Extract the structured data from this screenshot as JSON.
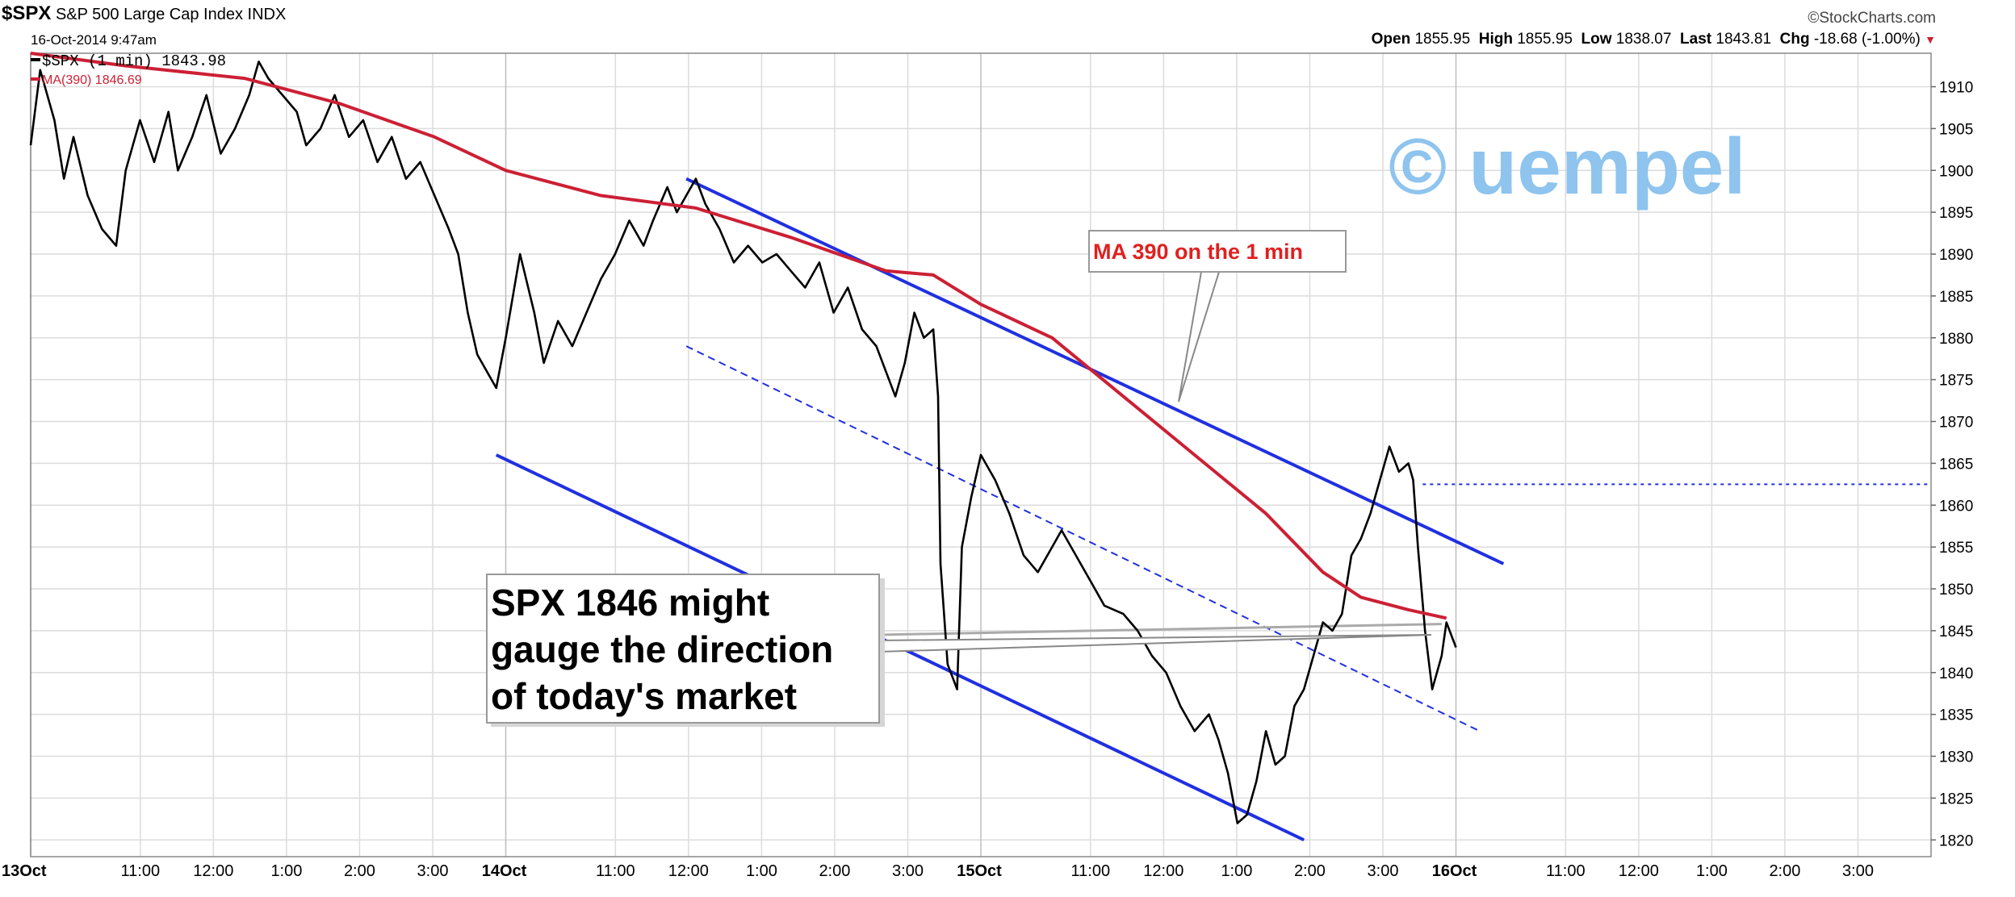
{
  "header": {
    "symbol": "$SPX",
    "name": "S&P 500 Large Cap Index",
    "exchange": "INDX",
    "datetime": "16-Oct-2014 9:47am",
    "source": "©StockCharts.com",
    "open_label": "Open",
    "open": "1855.95",
    "high_label": "High",
    "high": "1855.95",
    "low_label": "Low",
    "low": "1838.07",
    "last_label": "Last",
    "last": "1843.81",
    "chg_label": "Chg",
    "chg": "-18.68 (-1.00%)",
    "chg_arrow": "▼"
  },
  "legend": {
    "price": "$SPX (1 min) 1843.98",
    "ma": "MA(390) 1846.69"
  },
  "watermark": "© uempel",
  "colors": {
    "price": "#000000",
    "ma": "#cc2035",
    "channel": "#2030e0",
    "grid": "#dcdcdc",
    "watermark": "#8ec4ee"
  },
  "annotations": {
    "ma_callout": "MA 390 on the 1 min",
    "spx_callout": [
      "SPX 1846 might",
      "gauge the direction",
      "of today's market"
    ]
  },
  "chart_data": {
    "type": "line",
    "ylim": [
      1818,
      1914
    ],
    "y_ticks": [
      1820,
      1825,
      1830,
      1835,
      1840,
      1845,
      1850,
      1855,
      1860,
      1865,
      1870,
      1875,
      1880,
      1885,
      1890,
      1895,
      1900,
      1905,
      1910
    ],
    "x_unit": "trading-day index (0 = 13 Oct 9:30, 1 = 14 Oct 9:30, 2 = 15 Oct 9:30, 3 = 16 Oct 9:30)",
    "xlim": [
      0,
      4
    ],
    "x_ticks": [
      {
        "x": 0.0,
        "label": "13Oct",
        "bold": true
      },
      {
        "x": 0.2308,
        "label": "11:00"
      },
      {
        "x": 0.3846,
        "label": "12:00"
      },
      {
        "x": 0.5385,
        "label": "1:00"
      },
      {
        "x": 0.6923,
        "label": "2:00"
      },
      {
        "x": 0.8462,
        "label": "3:00"
      },
      {
        "x": 1.0,
        "label": "14Oct",
        "bold": true
      },
      {
        "x": 1.2308,
        "label": "11:00"
      },
      {
        "x": 1.3846,
        "label": "12:00"
      },
      {
        "x": 1.5385,
        "label": "1:00"
      },
      {
        "x": 1.6923,
        "label": "2:00"
      },
      {
        "x": 1.8462,
        "label": "3:00"
      },
      {
        "x": 2.0,
        "label": "15Oct",
        "bold": true
      },
      {
        "x": 2.2308,
        "label": "11:00"
      },
      {
        "x": 2.3846,
        "label": "12:00"
      },
      {
        "x": 2.5385,
        "label": "1:00"
      },
      {
        "x": 2.6923,
        "label": "2:00"
      },
      {
        "x": 2.8462,
        "label": "3:00"
      },
      {
        "x": 3.0,
        "label": "16Oct",
        "bold": true
      },
      {
        "x": 3.2308,
        "label": "11:00"
      },
      {
        "x": 3.3846,
        "label": "12:00"
      },
      {
        "x": 3.5385,
        "label": "1:00"
      },
      {
        "x": 3.6923,
        "label": "2:00"
      },
      {
        "x": 3.8462,
        "label": "3:00"
      }
    ],
    "series": [
      {
        "name": "$SPX (1 min)",
        "points": [
          [
            0.0,
            1903
          ],
          [
            0.02,
            1912
          ],
          [
            0.05,
            1906
          ],
          [
            0.07,
            1899
          ],
          [
            0.09,
            1904
          ],
          [
            0.12,
            1897
          ],
          [
            0.15,
            1893
          ],
          [
            0.18,
            1891
          ],
          [
            0.2,
            1900
          ],
          [
            0.23,
            1906
          ],
          [
            0.26,
            1901
          ],
          [
            0.29,
            1907
          ],
          [
            0.31,
            1900
          ],
          [
            0.34,
            1904
          ],
          [
            0.37,
            1909
          ],
          [
            0.4,
            1902
          ],
          [
            0.43,
            1905
          ],
          [
            0.46,
            1909
          ],
          [
            0.48,
            1913
          ],
          [
            0.5,
            1911
          ],
          [
            0.53,
            1909
          ],
          [
            0.56,
            1907
          ],
          [
            0.58,
            1903
          ],
          [
            0.61,
            1905
          ],
          [
            0.64,
            1909
          ],
          [
            0.67,
            1904
          ],
          [
            0.7,
            1906
          ],
          [
            0.73,
            1901
          ],
          [
            0.76,
            1904
          ],
          [
            0.79,
            1899
          ],
          [
            0.82,
            1901
          ],
          [
            0.85,
            1897
          ],
          [
            0.88,
            1893
          ],
          [
            0.9,
            1890
          ],
          [
            0.92,
            1883
          ],
          [
            0.94,
            1878
          ],
          [
            0.96,
            1876
          ],
          [
            0.98,
            1874
          ],
          [
            1.0,
            1880
          ],
          [
            1.03,
            1890
          ],
          [
            1.06,
            1883
          ],
          [
            1.08,
            1877
          ],
          [
            1.11,
            1882
          ],
          [
            1.14,
            1879
          ],
          [
            1.17,
            1883
          ],
          [
            1.2,
            1887
          ],
          [
            1.23,
            1890
          ],
          [
            1.26,
            1894
          ],
          [
            1.29,
            1891
          ],
          [
            1.31,
            1894
          ],
          [
            1.34,
            1898
          ],
          [
            1.36,
            1895
          ],
          [
            1.38,
            1897
          ],
          [
            1.4,
            1899
          ],
          [
            1.42,
            1896
          ],
          [
            1.45,
            1893
          ],
          [
            1.48,
            1889
          ],
          [
            1.51,
            1891
          ],
          [
            1.54,
            1889
          ],
          [
            1.57,
            1890
          ],
          [
            1.6,
            1888
          ],
          [
            1.63,
            1886
          ],
          [
            1.66,
            1889
          ],
          [
            1.69,
            1883
          ],
          [
            1.72,
            1886
          ],
          [
            1.75,
            1881
          ],
          [
            1.78,
            1879
          ],
          [
            1.8,
            1876
          ],
          [
            1.82,
            1873
          ],
          [
            1.84,
            1877
          ],
          [
            1.86,
            1883
          ],
          [
            1.88,
            1880
          ],
          [
            1.9,
            1881
          ],
          [
            1.91,
            1873
          ],
          [
            1.915,
            1853
          ],
          [
            1.93,
            1841
          ],
          [
            1.95,
            1838
          ],
          [
            1.96,
            1855
          ],
          [
            1.98,
            1861
          ],
          [
            2.0,
            1866
          ],
          [
            2.03,
            1863
          ],
          [
            2.06,
            1859
          ],
          [
            2.09,
            1854
          ],
          [
            2.12,
            1852
          ],
          [
            2.15,
            1855
          ],
          [
            2.17,
            1857
          ],
          [
            2.2,
            1854
          ],
          [
            2.23,
            1851
          ],
          [
            2.26,
            1848
          ],
          [
            2.3,
            1847
          ],
          [
            2.33,
            1845
          ],
          [
            2.36,
            1842
          ],
          [
            2.39,
            1840
          ],
          [
            2.42,
            1836
          ],
          [
            2.45,
            1833
          ],
          [
            2.48,
            1835
          ],
          [
            2.5,
            1832
          ],
          [
            2.52,
            1828
          ],
          [
            2.54,
            1822
          ],
          [
            2.56,
            1823
          ],
          [
            2.58,
            1827
          ],
          [
            2.6,
            1833
          ],
          [
            2.62,
            1829
          ],
          [
            2.64,
            1830
          ],
          [
            2.66,
            1836
          ],
          [
            2.68,
            1838
          ],
          [
            2.7,
            1842
          ],
          [
            2.72,
            1846
          ],
          [
            2.74,
            1845
          ],
          [
            2.76,
            1847
          ],
          [
            2.78,
            1854
          ],
          [
            2.8,
            1856
          ],
          [
            2.82,
            1859
          ],
          [
            2.84,
            1863
          ],
          [
            2.86,
            1867
          ],
          [
            2.88,
            1864
          ],
          [
            2.9,
            1865
          ],
          [
            2.91,
            1863
          ],
          [
            2.92,
            1855
          ],
          [
            2.935,
            1845
          ],
          [
            2.95,
            1838
          ],
          [
            2.97,
            1842
          ],
          [
            2.98,
            1846
          ],
          [
            3.0,
            1843
          ]
        ]
      },
      {
        "name": "MA(390)",
        "points": [
          [
            0.0,
            1914
          ],
          [
            0.2,
            1912.5
          ],
          [
            0.45,
            1911
          ],
          [
            0.65,
            1908
          ],
          [
            0.85,
            1904
          ],
          [
            1.0,
            1900
          ],
          [
            1.2,
            1897
          ],
          [
            1.4,
            1895.5
          ],
          [
            1.6,
            1892
          ],
          [
            1.8,
            1888
          ],
          [
            1.9,
            1887.5
          ],
          [
            2.0,
            1884
          ],
          [
            2.15,
            1880
          ],
          [
            2.3,
            1873
          ],
          [
            2.45,
            1866
          ],
          [
            2.6,
            1859
          ],
          [
            2.72,
            1852
          ],
          [
            2.8,
            1849
          ],
          [
            2.9,
            1847.5
          ],
          [
            2.98,
            1846.5
          ]
        ]
      }
    ],
    "lines": [
      {
        "kind": "channel-upper",
        "from": [
          1.38,
          1899
        ],
        "to": [
          3.1,
          1853
        ]
      },
      {
        "kind": "channel-lower",
        "from": [
          0.98,
          1866
        ],
        "to": [
          2.68,
          1820
        ]
      },
      {
        "kind": "channel-mid-dashed",
        "from": [
          1.38,
          1879
        ],
        "to": [
          3.05,
          1833
        ]
      },
      {
        "kind": "level-dotted",
        "from": [
          2.93,
          1862.5
        ],
        "to": [
          4.0,
          1862.5
        ]
      },
      {
        "kind": "level-grey",
        "from": [
          1.78,
          1844.5
        ],
        "to": [
          2.97,
          1845.8
        ]
      }
    ]
  }
}
